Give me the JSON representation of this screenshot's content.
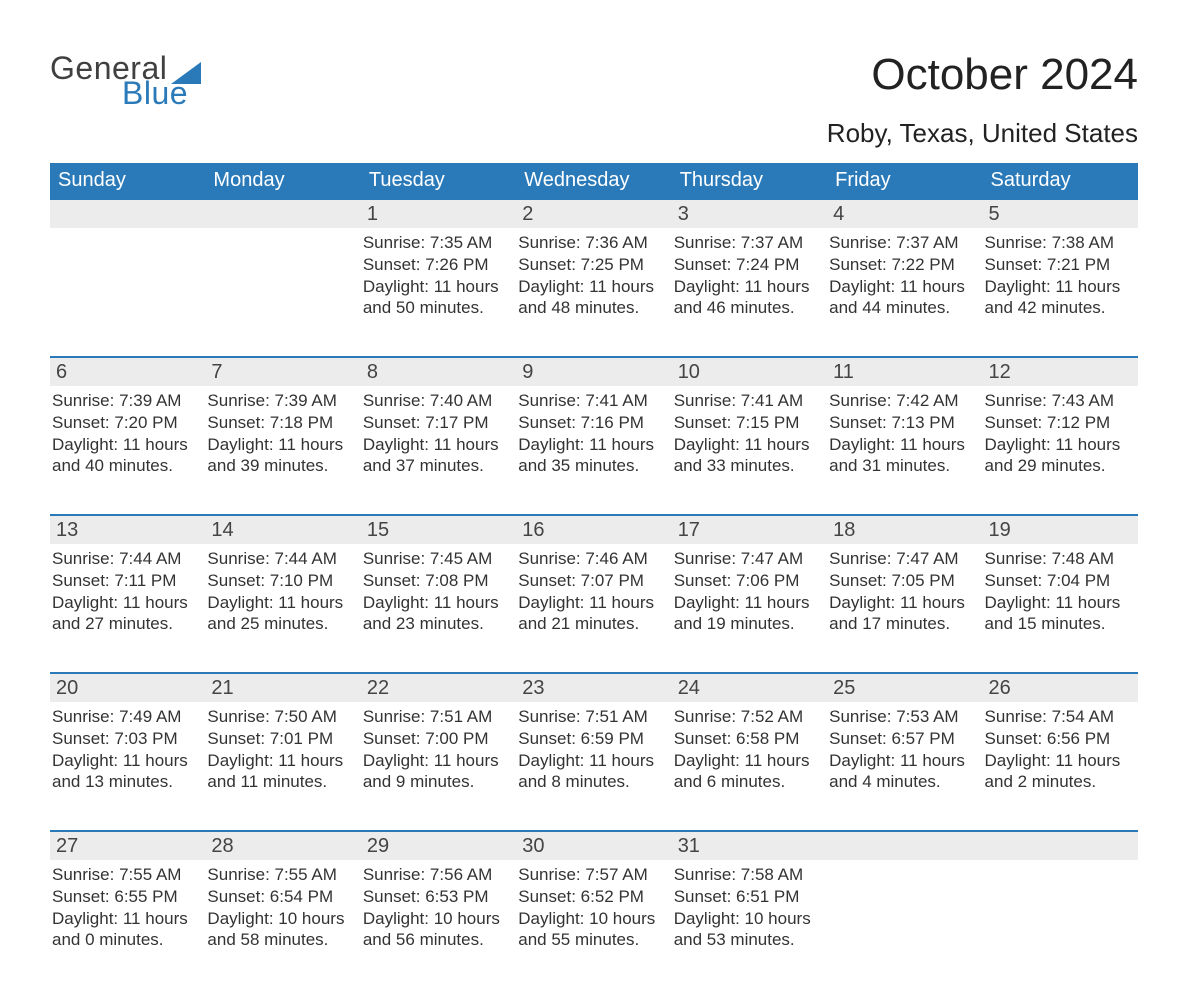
{
  "brand": {
    "word1": "General",
    "word2": "Blue",
    "word1_color": "#404040",
    "word2_color": "#2a7ab9",
    "shape_color": "#2a7ab9"
  },
  "title": {
    "month": "October 2024",
    "location": "Roby, Texas, United States"
  },
  "colors": {
    "header_bg": "#2a7ab9",
    "header_text": "#ffffff",
    "daynum_bg": "#ececec",
    "daynum_border": "#2a7ab9",
    "body_text": "#333333",
    "background": "#ffffff"
  },
  "weekdays": [
    "Sunday",
    "Monday",
    "Tuesday",
    "Wednesday",
    "Thursday",
    "Friday",
    "Saturday"
  ],
  "weeks": [
    [
      null,
      null,
      {
        "n": "1",
        "sr": "7:35 AM",
        "ss": "7:26 PM",
        "dl": "11 hours and 50 minutes."
      },
      {
        "n": "2",
        "sr": "7:36 AM",
        "ss": "7:25 PM",
        "dl": "11 hours and 48 minutes."
      },
      {
        "n": "3",
        "sr": "7:37 AM",
        "ss": "7:24 PM",
        "dl": "11 hours and 46 minutes."
      },
      {
        "n": "4",
        "sr": "7:37 AM",
        "ss": "7:22 PM",
        "dl": "11 hours and 44 minutes."
      },
      {
        "n": "5",
        "sr": "7:38 AM",
        "ss": "7:21 PM",
        "dl": "11 hours and 42 minutes."
      }
    ],
    [
      {
        "n": "6",
        "sr": "7:39 AM",
        "ss": "7:20 PM",
        "dl": "11 hours and 40 minutes."
      },
      {
        "n": "7",
        "sr": "7:39 AM",
        "ss": "7:18 PM",
        "dl": "11 hours and 39 minutes."
      },
      {
        "n": "8",
        "sr": "7:40 AM",
        "ss": "7:17 PM",
        "dl": "11 hours and 37 minutes."
      },
      {
        "n": "9",
        "sr": "7:41 AM",
        "ss": "7:16 PM",
        "dl": "11 hours and 35 minutes."
      },
      {
        "n": "10",
        "sr": "7:41 AM",
        "ss": "7:15 PM",
        "dl": "11 hours and 33 minutes."
      },
      {
        "n": "11",
        "sr": "7:42 AM",
        "ss": "7:13 PM",
        "dl": "11 hours and 31 minutes."
      },
      {
        "n": "12",
        "sr": "7:43 AM",
        "ss": "7:12 PM",
        "dl": "11 hours and 29 minutes."
      }
    ],
    [
      {
        "n": "13",
        "sr": "7:44 AM",
        "ss": "7:11 PM",
        "dl": "11 hours and 27 minutes."
      },
      {
        "n": "14",
        "sr": "7:44 AM",
        "ss": "7:10 PM",
        "dl": "11 hours and 25 minutes."
      },
      {
        "n": "15",
        "sr": "7:45 AM",
        "ss": "7:08 PM",
        "dl": "11 hours and 23 minutes."
      },
      {
        "n": "16",
        "sr": "7:46 AM",
        "ss": "7:07 PM",
        "dl": "11 hours and 21 minutes."
      },
      {
        "n": "17",
        "sr": "7:47 AM",
        "ss": "7:06 PM",
        "dl": "11 hours and 19 minutes."
      },
      {
        "n": "18",
        "sr": "7:47 AM",
        "ss": "7:05 PM",
        "dl": "11 hours and 17 minutes."
      },
      {
        "n": "19",
        "sr": "7:48 AM",
        "ss": "7:04 PM",
        "dl": "11 hours and 15 minutes."
      }
    ],
    [
      {
        "n": "20",
        "sr": "7:49 AM",
        "ss": "7:03 PM",
        "dl": "11 hours and 13 minutes."
      },
      {
        "n": "21",
        "sr": "7:50 AM",
        "ss": "7:01 PM",
        "dl": "11 hours and 11 minutes."
      },
      {
        "n": "22",
        "sr": "7:51 AM",
        "ss": "7:00 PM",
        "dl": "11 hours and 9 minutes."
      },
      {
        "n": "23",
        "sr": "7:51 AM",
        "ss": "6:59 PM",
        "dl": "11 hours and 8 minutes."
      },
      {
        "n": "24",
        "sr": "7:52 AM",
        "ss": "6:58 PM",
        "dl": "11 hours and 6 minutes."
      },
      {
        "n": "25",
        "sr": "7:53 AM",
        "ss": "6:57 PM",
        "dl": "11 hours and 4 minutes."
      },
      {
        "n": "26",
        "sr": "7:54 AM",
        "ss": "6:56 PM",
        "dl": "11 hours and 2 minutes."
      }
    ],
    [
      {
        "n": "27",
        "sr": "7:55 AM",
        "ss": "6:55 PM",
        "dl": "11 hours and 0 minutes."
      },
      {
        "n": "28",
        "sr": "7:55 AM",
        "ss": "6:54 PM",
        "dl": "10 hours and 58 minutes."
      },
      {
        "n": "29",
        "sr": "7:56 AM",
        "ss": "6:53 PM",
        "dl": "10 hours and 56 minutes."
      },
      {
        "n": "30",
        "sr": "7:57 AM",
        "ss": "6:52 PM",
        "dl": "10 hours and 55 minutes."
      },
      {
        "n": "31",
        "sr": "7:58 AM",
        "ss": "6:51 PM",
        "dl": "10 hours and 53 minutes."
      },
      null,
      null
    ]
  ],
  "labels": {
    "sunrise": "Sunrise: ",
    "sunset": "Sunset: ",
    "daylight": "Daylight: "
  }
}
